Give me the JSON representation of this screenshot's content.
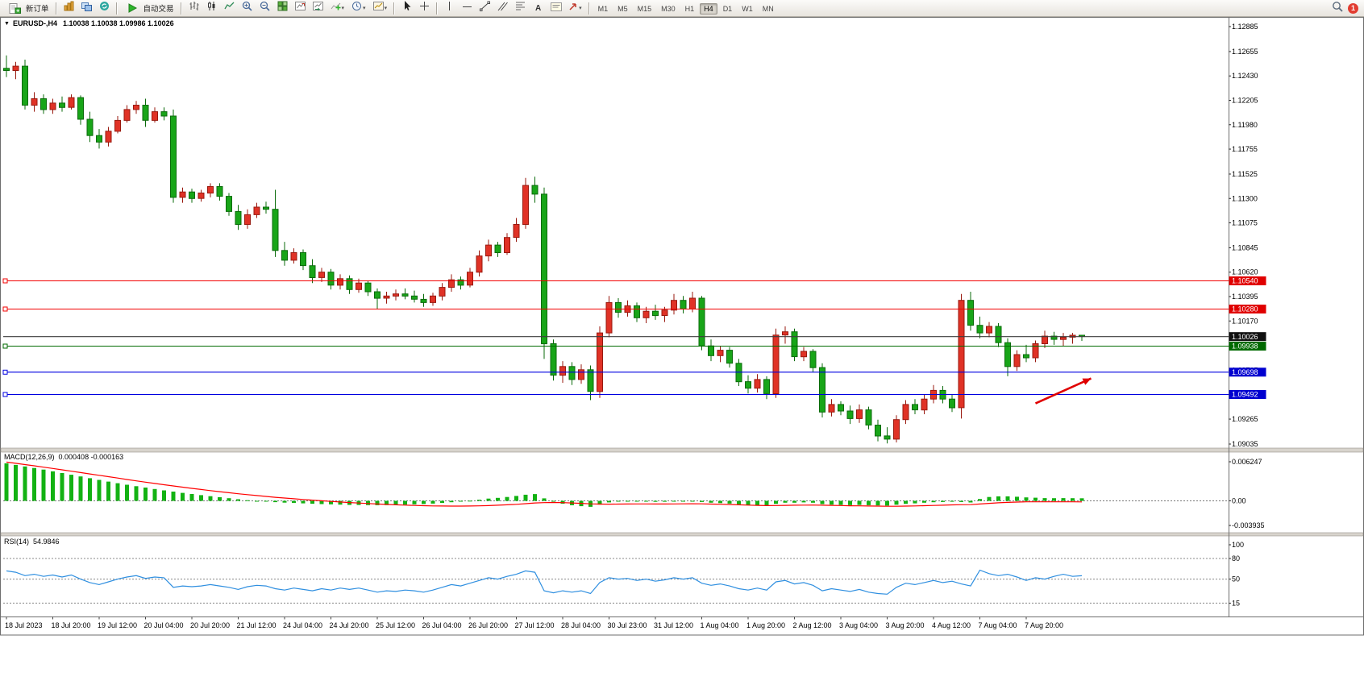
{
  "toolbar": {
    "new_order_label": "新订单",
    "auto_trading_label": "自动交易",
    "text_tool_label": "A",
    "notification_count": "1",
    "timeframes": [
      "M1",
      "M5",
      "M15",
      "M30",
      "H1",
      "H4",
      "D1",
      "W1",
      "MN"
    ],
    "active_timeframe": "H4",
    "icons": [
      "new-order",
      "new-chart",
      "profiles",
      "refresh",
      "auto-trading",
      "bar-chart",
      "candlestick-chart",
      "line-chart",
      "zoom-in",
      "zoom-out",
      "tile-windows",
      "chart-shift",
      "auto-scroll",
      "indicators",
      "periods",
      "templates",
      "cursor",
      "crosshair",
      "vertical-line",
      "horizontal-line",
      "trendline",
      "equidistant-channel",
      "fibonacci",
      "text",
      "text-label",
      "arrows",
      "search",
      "notification"
    ]
  },
  "chart": {
    "collapse_icon": "▼",
    "title": "EURUSD-,H4",
    "ohlc": "1.10038 1.10038 1.09986 1.10026"
  },
  "indicators": {
    "macd_label": "MACD(12,26,9)",
    "macd_values": "0.000408 -0.000163",
    "rsi_label": "RSI(14)",
    "rsi_value": "54.9846"
  },
  "chart_data": {
    "type": "candlestick",
    "symbol": "EURUSD-",
    "period": "H4",
    "colors": {
      "bull": "#e03226",
      "bull_edge": "#99190f",
      "bear": "#18a518",
      "bear_edge": "#0b6b0b",
      "macd": "#13b213",
      "signal": "#ff0000",
      "rsi": "#2f8fe0"
    },
    "price_axis_ticks": [
      1.12885,
      1.12655,
      1.1243,
      1.12205,
      1.1198,
      1.11755,
      1.11525,
      1.113,
      1.11075,
      1.10845,
      1.1062,
      1.10395,
      1.1017,
      1.0994,
      1.09715,
      1.0949,
      1.09265,
      1.09035
    ],
    "hlines": [
      {
        "price": 1.1054,
        "label": "1.10540",
        "color": "#f20000",
        "box": "#e00000"
      },
      {
        "price": 1.1028,
        "label": "1.10280",
        "color": "#f20000",
        "box": "#e00000"
      },
      {
        "price": 1.10026,
        "label": "1.10026",
        "color": "#3c3c3c",
        "box": "#111111",
        "marker": false
      },
      {
        "price": 1.09938,
        "label": "1.09938",
        "color": "#006a00",
        "box": "#006a00"
      },
      {
        "price": 1.09698,
        "label": "1.09698",
        "color": "#0000e0",
        "box": "#0000d0"
      },
      {
        "price": 1.09492,
        "label": "1.09492",
        "color": "#0000e0",
        "box": "#0000d0"
      }
    ],
    "arrow": {
      "from_index": 111,
      "from_price": 1.0941,
      "to_index": 117,
      "to_price": 1.0964,
      "color": "#e00000"
    },
    "candles": [
      [
        1.125,
        1.1262,
        1.1242,
        1.1248
      ],
      [
        1.1248,
        1.1256,
        1.124,
        1.1252
      ],
      [
        1.1252,
        1.1258,
        1.1212,
        1.1216
      ],
      [
        1.1216,
        1.1228,
        1.121,
        1.1222
      ],
      [
        1.1222,
        1.1226,
        1.1208,
        1.1212
      ],
      [
        1.1212,
        1.1222,
        1.1208,
        1.1218
      ],
      [
        1.1218,
        1.1224,
        1.121,
        1.1214
      ],
      [
        1.1214,
        1.1226,
        1.1212,
        1.1223
      ],
      [
        1.1223,
        1.1225,
        1.1198,
        1.1203
      ],
      [
        1.1203,
        1.121,
        1.1182,
        1.1188
      ],
      [
        1.1188,
        1.1194,
        1.1176,
        1.1182
      ],
      [
        1.1182,
        1.1196,
        1.1178,
        1.1192
      ],
      [
        1.1192,
        1.1206,
        1.119,
        1.1202
      ],
      [
        1.1202,
        1.1216,
        1.12,
        1.1212
      ],
      [
        1.1212,
        1.122,
        1.1208,
        1.1216
      ],
      [
        1.1216,
        1.1222,
        1.1196,
        1.1202
      ],
      [
        1.1202,
        1.1214,
        1.12,
        1.121
      ],
      [
        1.121,
        1.1214,
        1.1202,
        1.1206
      ],
      [
        1.1206,
        1.1212,
        1.1126,
        1.1131
      ],
      [
        1.1131,
        1.114,
        1.1126,
        1.1136
      ],
      [
        1.1136,
        1.1139,
        1.1126,
        1.113
      ],
      [
        1.113,
        1.1138,
        1.1127,
        1.1135
      ],
      [
        1.1135,
        1.1144,
        1.1131,
        1.1141
      ],
      [
        1.1141,
        1.1144,
        1.1128,
        1.1132
      ],
      [
        1.1132,
        1.1135,
        1.1114,
        1.1118
      ],
      [
        1.1118,
        1.1124,
        1.1101,
        1.1106
      ],
      [
        1.1106,
        1.112,
        1.1102,
        1.1115
      ],
      [
        1.1115,
        1.1126,
        1.1112,
        1.1122
      ],
      [
        1.1122,
        1.1127,
        1.1116,
        1.112
      ],
      [
        1.112,
        1.1138,
        1.1076,
        1.1082
      ],
      [
        1.1082,
        1.109,
        1.1068,
        1.1073
      ],
      [
        1.1073,
        1.1084,
        1.107,
        1.108
      ],
      [
        1.108,
        1.1083,
        1.1064,
        1.1068
      ],
      [
        1.1068,
        1.1074,
        1.1052,
        1.1057
      ],
      [
        1.1057,
        1.1066,
        1.1053,
        1.1062
      ],
      [
        1.1062,
        1.1065,
        1.1046,
        1.105
      ],
      [
        1.105,
        1.106,
        1.1046,
        1.1056
      ],
      [
        1.1056,
        1.1059,
        1.1042,
        1.1046
      ],
      [
        1.1046,
        1.1056,
        1.1043,
        1.1052
      ],
      [
        1.1052,
        1.1054,
        1.104,
        1.1044
      ],
      [
        1.1044,
        1.1047,
        1.1028,
        1.1038
      ],
      [
        1.1038,
        1.1044,
        1.1033,
        1.104
      ],
      [
        1.104,
        1.1046,
        1.1036,
        1.1042
      ],
      [
        1.1042,
        1.1047,
        1.1037,
        1.104
      ],
      [
        1.104,
        1.1045,
        1.1034,
        1.1037
      ],
      [
        1.1037,
        1.1042,
        1.103,
        1.1034
      ],
      [
        1.1034,
        1.1043,
        1.1031,
        1.104
      ],
      [
        1.104,
        1.1052,
        1.1036,
        1.1048
      ],
      [
        1.1048,
        1.106,
        1.1044,
        1.1055
      ],
      [
        1.1055,
        1.1058,
        1.1046,
        1.105
      ],
      [
        1.105,
        1.1066,
        1.1048,
        1.1062
      ],
      [
        1.1062,
        1.1082,
        1.1058,
        1.1077
      ],
      [
        1.1077,
        1.1092,
        1.1072,
        1.1087
      ],
      [
        1.1087,
        1.109,
        1.1076,
        1.108
      ],
      [
        1.108,
        1.1098,
        1.1078,
        1.1094
      ],
      [
        1.1094,
        1.1112,
        1.109,
        1.1106
      ],
      [
        1.1106,
        1.1149,
        1.1102,
        1.1142
      ],
      [
        1.1142,
        1.115,
        1.1126,
        1.1134
      ],
      [
        1.1134,
        1.114,
        1.0982,
        1.0996
      ],
      [
        1.0996,
        1.1,
        1.0962,
        1.0967
      ],
      [
        1.0967,
        1.098,
        1.096,
        1.0975
      ],
      [
        1.0975,
        1.0979,
        1.0958,
        1.0963
      ],
      [
        1.0963,
        1.0977,
        1.0959,
        1.0972
      ],
      [
        1.0972,
        1.0976,
        1.0944,
        1.0952
      ],
      [
        1.0952,
        1.1012,
        1.0946,
        1.1006
      ],
      [
        1.1006,
        1.104,
        1.1002,
        1.1034
      ],
      [
        1.1034,
        1.1038,
        1.102,
        1.1025
      ],
      [
        1.1025,
        1.1036,
        1.1021,
        1.1031
      ],
      [
        1.1031,
        1.1034,
        1.1016,
        1.102
      ],
      [
        1.102,
        1.103,
        1.1015,
        1.1026
      ],
      [
        1.1026,
        1.1032,
        1.1018,
        1.1022
      ],
      [
        1.1022,
        1.103,
        1.1016,
        1.1027
      ],
      [
        1.1027,
        1.1042,
        1.1023,
        1.1036
      ],
      [
        1.1036,
        1.104,
        1.1024,
        1.1028
      ],
      [
        1.1028,
        1.1044,
        1.1025,
        1.1038
      ],
      [
        1.1038,
        1.104,
        1.099,
        1.0994
      ],
      [
        1.0994,
        1.1,
        1.098,
        1.0985
      ],
      [
        1.0985,
        1.0994,
        1.0979,
        1.099
      ],
      [
        1.099,
        1.0993,
        1.0974,
        1.0978
      ],
      [
        1.0978,
        1.0982,
        1.0957,
        1.0961
      ],
      [
        1.0961,
        1.0967,
        1.095,
        1.0955
      ],
      [
        1.0955,
        1.0968,
        1.0951,
        1.0963
      ],
      [
        1.0963,
        1.0966,
        1.0945,
        1.095
      ],
      [
        1.095,
        1.101,
        1.0946,
        1.1004
      ],
      [
        1.1004,
        1.1012,
        1.0996,
        1.1007
      ],
      [
        1.1007,
        1.101,
        1.098,
        1.0984
      ],
      [
        1.0984,
        1.0993,
        1.098,
        1.0989
      ],
      [
        1.0989,
        1.0991,
        1.097,
        1.0974
      ],
      [
        1.0974,
        1.0978,
        1.0928,
        1.0933
      ],
      [
        1.0933,
        1.0945,
        1.0929,
        1.094
      ],
      [
        1.094,
        1.0943,
        1.093,
        1.0934
      ],
      [
        1.0934,
        1.0939,
        1.0922,
        1.0927
      ],
      [
        1.0927,
        1.094,
        1.0923,
        1.0935
      ],
      [
        1.0935,
        1.0938,
        1.0917,
        1.0921
      ],
      [
        1.0921,
        1.0926,
        1.0906,
        1.0911
      ],
      [
        1.0911,
        1.0919,
        1.0904,
        1.0908
      ],
      [
        1.0908,
        1.093,
        1.0905,
        1.0926
      ],
      [
        1.0926,
        1.0944,
        1.0922,
        1.094
      ],
      [
        1.094,
        1.0945,
        1.0931,
        1.0935
      ],
      [
        1.0935,
        1.0949,
        1.0931,
        1.0945
      ],
      [
        1.0945,
        1.0958,
        1.0941,
        1.0953
      ],
      [
        1.0953,
        1.0957,
        1.0941,
        1.0945
      ],
      [
        1.0945,
        1.0949,
        1.0933,
        1.0937
      ],
      [
        1.0937,
        1.1042,
        1.0927,
        1.1036
      ],
      [
        1.1036,
        1.1044,
        1.1008,
        1.1013
      ],
      [
        1.1013,
        1.1021,
        1.1001,
        1.1006
      ],
      [
        1.1006,
        1.1016,
        1.1002,
        1.1012
      ],
      [
        1.1012,
        1.1015,
        1.0993,
        1.0997
      ],
      [
        1.0997,
        1.1001,
        1.0966,
        1.0975
      ],
      [
        1.0975,
        1.099,
        1.0971,
        1.0986
      ],
      [
        1.0986,
        1.0995,
        1.0979,
        1.0983
      ],
      [
        1.0983,
        1.0999,
        1.0979,
        1.0996
      ],
      [
        1.0996,
        1.1008,
        1.0992,
        1.1003
      ],
      [
        1.1003,
        1.1007,
        1.0995,
        1.1
      ],
      [
        1.1,
        1.1006,
        1.0994,
        1.1002
      ],
      [
        1.1002,
        1.1006,
        1.0996,
        1.10038
      ],
      [
        1.10038,
        1.10038,
        1.09986,
        1.10026
      ]
    ],
    "macd": {
      "axis": [
        {
          "value": 0.006247,
          "label": "0.006247"
        },
        {
          "value": 0,
          "label": "0.00"
        },
        {
          "value": -0.003935,
          "label": "-0.003935"
        }
      ],
      "histogram": [
        0.006,
        0.00575,
        0.0055,
        0.00525,
        0.005,
        0.00472,
        0.00445,
        0.00418,
        0.0039,
        0.00362,
        0.00335,
        0.00308,
        0.00282,
        0.00258,
        0.00235,
        0.00212,
        0.0019,
        0.00168,
        0.00148,
        0.00128,
        0.0011,
        0.00092,
        0.00075,
        0.00058,
        0.00042,
        0.00026,
        0.0001,
        -4e-05,
        -0.00012,
        -0.0002,
        -0.00028,
        -0.00034,
        -0.0004,
        -0.00046,
        -0.00052,
        -0.00056,
        -0.0006,
        -0.00064,
        -0.00066,
        -0.00068,
        -0.0007,
        -0.00068,
        -0.00064,
        -0.0006,
        -0.00055,
        -0.0005,
        -0.00044,
        -0.00034,
        -0.00022,
        -0.00012,
        2e-05,
        0.00018,
        0.00036,
        0.00048,
        0.00062,
        0.00078,
        0.00098,
        0.00108,
        0.0004,
        -0.0001,
        -0.00045,
        -0.0007,
        -0.00085,
        -0.00095,
        -0.0006,
        -0.00025,
        -8e-05,
        0.0,
        -4e-05,
        -0.0001,
        -0.00016,
        -0.00014,
        -8e-05,
        -8e-05,
        -4e-05,
        -0.00018,
        -0.0003,
        -0.00036,
        -0.00044,
        -0.00056,
        -0.00064,
        -0.00066,
        -0.0007,
        -0.00048,
        -0.0003,
        -0.0003,
        -0.00024,
        -0.0003,
        -0.00052,
        -0.0006,
        -0.00064,
        -0.00068,
        -0.00066,
        -0.0007,
        -0.00074,
        -0.00076,
        -0.00062,
        -0.00048,
        -0.0004,
        -0.0003,
        -0.00022,
        -0.00018,
        -0.00014,
        -0.00018,
        -0.00026,
        0.0003,
        0.00062,
        0.00072,
        0.00072,
        0.00066,
        0.00056,
        0.0005,
        0.00044,
        0.00042,
        0.00044,
        0.00042,
        0.000408
      ],
      "signal": [
        0.0062,
        0.006,
        0.0058,
        0.0056,
        0.00539,
        0.00518,
        0.00496,
        0.00474,
        0.00452,
        0.0043,
        0.00408,
        0.00386,
        0.00364,
        0.00342,
        0.0032,
        0.00299,
        0.00278,
        0.00258,
        0.00238,
        0.00219,
        0.002,
        0.00182,
        0.00164,
        0.00147,
        0.0013,
        0.00114,
        0.00099,
        0.00085,
        0.00071,
        0.00057,
        0.00045,
        0.00033,
        0.00022,
        0.00011,
        1e-05,
        -9e-05,
        -0.00018,
        -0.00027,
        -0.00035,
        -0.00043,
        -0.0005,
        -0.00057,
        -0.00063,
        -0.00068,
        -0.00073,
        -0.00077,
        -0.00081,
        -0.00083,
        -0.00084,
        -0.00084,
        -0.00083,
        -0.0008,
        -0.00076,
        -0.0007,
        -0.00063,
        -0.00055,
        -0.00045,
        -0.00034,
        -0.00028,
        -0.00026,
        -0.00028,
        -0.00033,
        -0.0004,
        -0.00048,
        -0.00052,
        -0.00053,
        -0.00052,
        -0.0005,
        -0.00049,
        -0.00049,
        -0.0005,
        -0.0005,
        -0.00049,
        -0.00048,
        -0.00047,
        -0.00048,
        -0.00051,
        -0.00054,
        -0.00058,
        -0.00063,
        -0.00068,
        -0.00072,
        -0.00076,
        -0.00075,
        -0.00072,
        -0.0007,
        -0.00068,
        -0.00067,
        -0.00069,
        -0.00072,
        -0.00075,
        -0.00078,
        -0.0008,
        -0.00082,
        -0.00084,
        -0.00086,
        -0.00086,
        -0.00084,
        -0.00081,
        -0.00077,
        -0.00073,
        -0.00069,
        -0.00065,
        -0.00062,
        -0.0006,
        -0.0005,
        -0.0004,
        -0.00031,
        -0.00024,
        -0.00019,
        -0.00016,
        -0.00015,
        -0.00015,
        -0.00016,
        -0.00016,
        -0.00016,
        -0.000163
      ]
    },
    "rsi": {
      "axis_labels": [
        100,
        80,
        50,
        15
      ],
      "levels": [
        80,
        50,
        15
      ],
      "values": [
        62,
        60,
        55,
        57,
        54,
        56,
        53,
        56,
        50,
        45,
        42,
        46,
        50,
        53,
        55,
        51,
        53,
        52,
        38,
        40,
        39,
        40,
        42,
        40,
        38,
        35,
        39,
        41,
        40,
        36,
        34,
        37,
        35,
        33,
        36,
        34,
        37,
        35,
        37,
        34,
        31,
        33,
        32,
        34,
        33,
        31,
        34,
        38,
        42,
        40,
        44,
        48,
        52,
        50,
        54,
        57,
        62,
        60,
        33,
        30,
        33,
        31,
        33,
        29,
        45,
        52,
        50,
        51,
        48,
        50,
        47,
        49,
        52,
        50,
        52,
        44,
        41,
        43,
        40,
        36,
        34,
        37,
        34,
        46,
        48,
        43,
        45,
        41,
        33,
        36,
        34,
        32,
        35,
        31,
        29,
        28,
        38,
        44,
        42,
        45,
        48,
        45,
        47,
        43,
        40,
        63,
        58,
        55,
        57,
        53,
        48,
        52,
        50,
        54,
        57,
        54,
        54.9846
      ]
    },
    "time_labels": [
      "18 Jul 2023",
      "18 Jul 20:00",
      "19 Jul 12:00",
      "20 Jul 04:00",
      "20 Jul 20:00",
      "21 Jul 12:00",
      "24 Jul 04:00",
      "24 Jul 20:00",
      "25 Jul 12:00",
      "26 Jul 04:00",
      "26 Jul 20:00",
      "27 Jul 12:00",
      "28 Jul 04:00",
      "30 Jul 23:00",
      "31 Jul 12:00",
      "1 Aug 04:00",
      "1 Aug 20:00",
      "2 Aug 12:00",
      "3 Aug 04:00",
      "3 Aug 20:00",
      "4 Aug 12:00",
      "7 Aug 04:00",
      "7 Aug 20:00"
    ],
    "label_every": 5
  }
}
